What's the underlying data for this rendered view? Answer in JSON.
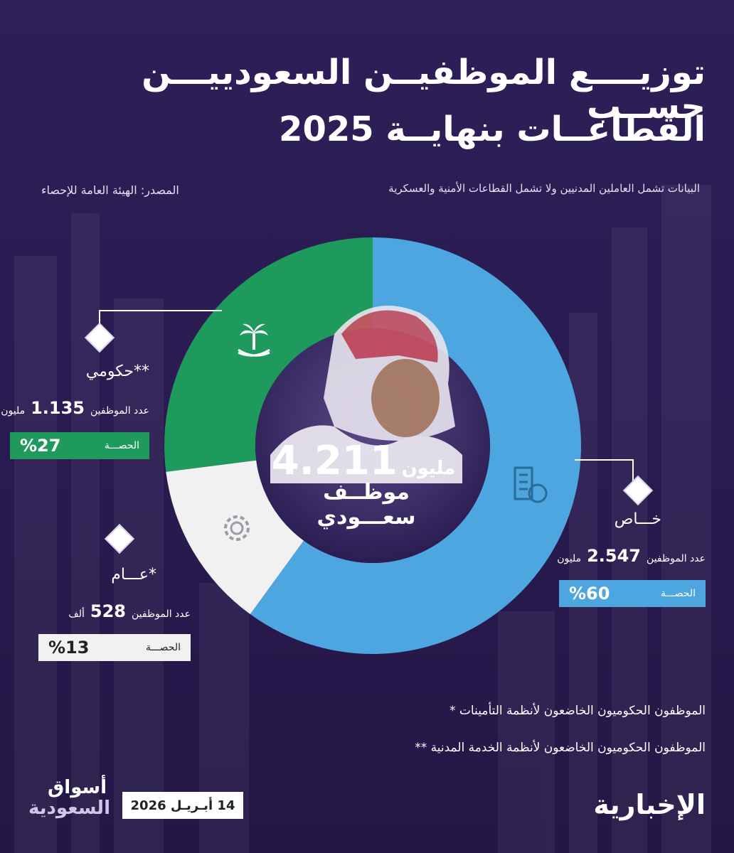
{
  "title_line1": "توزيــــع الموظفيــن السعودييـــن حســب",
  "title_line2": "القطاعــات بنهايــة 2025",
  "note": "البيانات تشمل العاملين المدنيين ولا تشمل القطاعات الأمنية والعسكرية",
  "source": "المصدر: الهيئة العامة للإحصاء",
  "center": {
    "total": "4.211",
    "unit": "مليون",
    "caption": "موظــف سعـــودي"
  },
  "sectors": {
    "private": {
      "name": "خـــاص",
      "count_label": "عدد الموظفين",
      "count": "2.547",
      "unit": "مليون",
      "share_label": "الحصـــة",
      "share": "%60",
      "color": "#4ea6e0"
    },
    "gov": {
      "name": "حكومي**",
      "count_label": "عدد الموظفين",
      "count": "1.135",
      "unit": "مليون",
      "share_label": "الحصـــة",
      "share": "%27",
      "color": "#1e9a5c"
    },
    "public": {
      "name": "عـــام*",
      "count_label": "عدد الموظفين",
      "count": "528",
      "unit": "ألف",
      "share_label": "الحصـــة",
      "share": "%13",
      "color": "#f1f1f1"
    }
  },
  "footnote1": "* الموظفون الحكوميون الخاضعون لأنظمة التأمينات",
  "footnote2": "** الموظفون الحكوميون الخاضعون لأنظمة الخدمة المدنية",
  "date": "14 أبـريـل 2026",
  "brand_left_1": "أسواق",
  "brand_left_2": "السعودية",
  "brand_right": "الإخبارية",
  "chart_data": {
    "type": "pie",
    "title": "توزيــــع الموظفيــن السعودييـــن حســب القطاعــات بنهايــة 2025",
    "categories": [
      "خـــاص",
      "حكومي**",
      "عـــام*"
    ],
    "values": [
      60,
      27,
      13
    ],
    "counts": [
      "2.547 مليون",
      "1.135 مليون",
      "528 ألف"
    ],
    "colors": [
      "#4ea6e0",
      "#1e9a5c",
      "#f1f1f1"
    ],
    "total": "4.211 مليون"
  }
}
